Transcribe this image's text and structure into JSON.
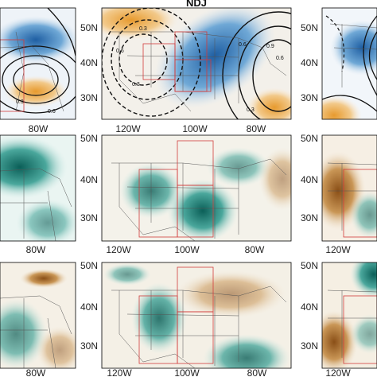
{
  "figure": {
    "center_title": "NDJ",
    "top_row": {
      "center_lat_labels": [
        "50N",
        "40N",
        "30N"
      ],
      "right_lat_labels": [
        "50N",
        "40N",
        "30N"
      ],
      "left_lon_labels": [
        "80W"
      ],
      "center_lon_labels": [
        "120W",
        "100W",
        "80W"
      ],
      "contour_labels": [
        "0.3",
        "0.6",
        "0.3",
        "0.6",
        "0.9",
        "0.6",
        "0.3",
        "0.3",
        "0.6"
      ]
    },
    "middle_row": {
      "center_lat_labels": [
        "50N",
        "40N",
        "30N"
      ],
      "right_lat_labels": [
        "50N",
        "40N",
        "30N"
      ],
      "left_lon_labels": [
        "80W"
      ],
      "center_lon_labels": [
        "120W",
        "100W",
        "80W"
      ],
      "right_lon_labels": [
        "120W"
      ]
    },
    "bottom_row": {
      "center_lat_labels": [
        "50N",
        "40N",
        "30N"
      ],
      "right_lat_labels": [
        "50N",
        "40N",
        "30N"
      ],
      "left_lon_labels": [
        "80W"
      ],
      "center_lon_labels": [
        "120W",
        "100W",
        "80W"
      ],
      "right_lon_labels": [
        "120W"
      ]
    },
    "colors": {
      "blue_strong": "#2d6fb0",
      "blue_light": "#a9cbe6",
      "orange": "#e8a33c",
      "teal_strong": "#0f6e66",
      "teal_light": "#9fd3cc",
      "brown_strong": "#9a5a1c",
      "brown_light": "#e6caa0",
      "box_red": "#d23c3c"
    }
  }
}
